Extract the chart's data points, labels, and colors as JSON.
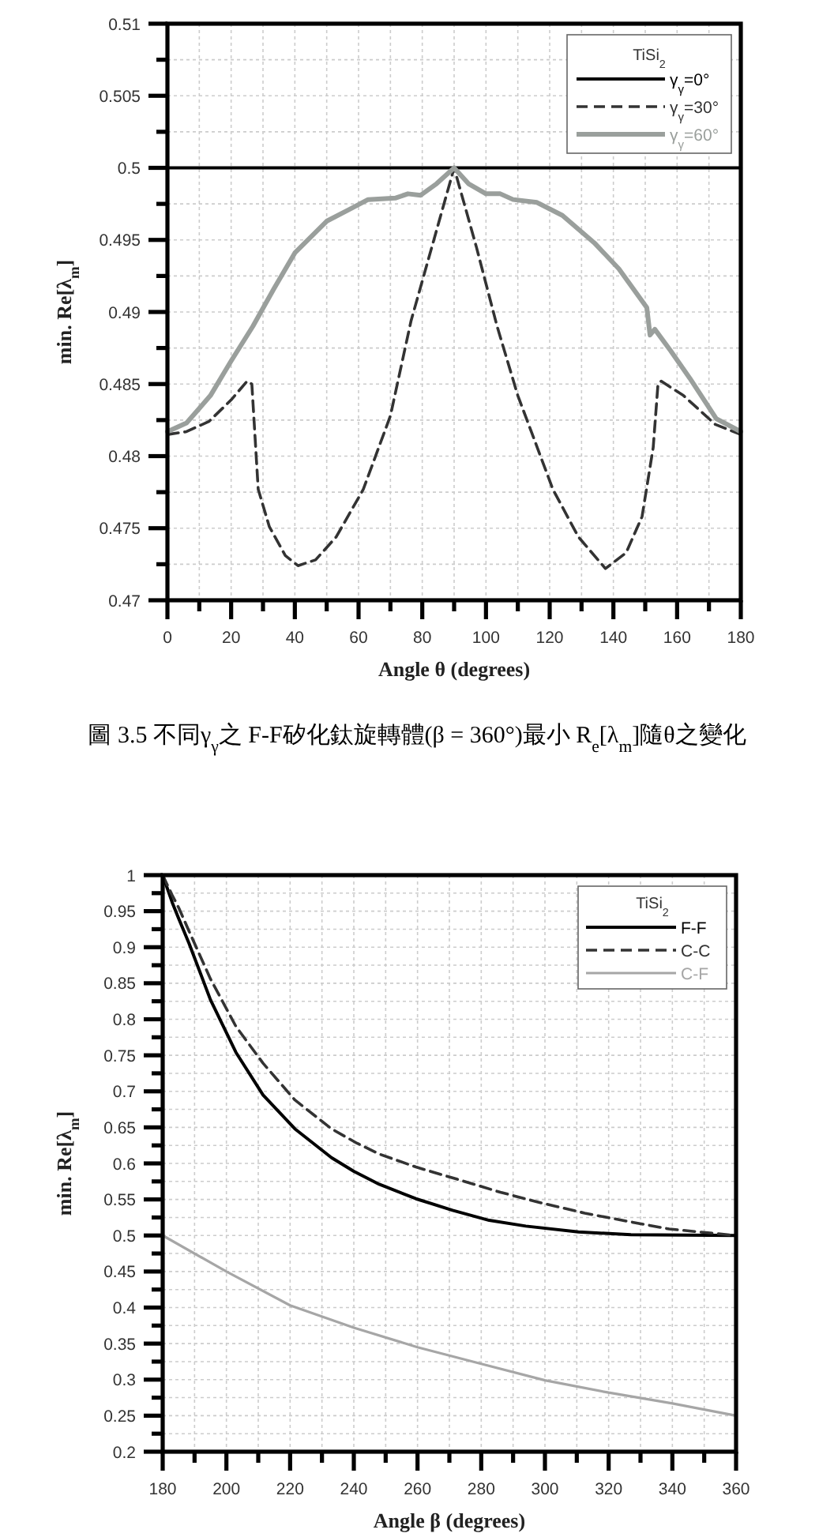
{
  "chart_data": [
    {
      "type": "line",
      "xlabel": "Angle θ (degrees)",
      "ylabel": "min. Re[λ$_{m}$]",
      "legend_title": "TiSi$_{2}$",
      "annotations": [
        "圖 3.5 不同γ$_{γ}$之 F-F矽化鈦旋轉體(β = 360°)最小 R$_{e}$[λ$_{m}$]隨θ之變化"
      ],
      "xlim": [
        0,
        180
      ],
      "ylim": [
        0.47,
        0.51
      ],
      "xticks": [
        0,
        {
          "value": 10,
          "label": null
        },
        20,
        {
          "value": 30,
          "label": null
        },
        40,
        {
          "value": 50,
          "label": null
        },
        60,
        {
          "value": 70,
          "label": null
        },
        80,
        {
          "value": 90,
          "label": null
        },
        100,
        {
          "value": 110,
          "label": null
        },
        120,
        {
          "value": 130,
          "label": null
        },
        140,
        {
          "value": 150,
          "label": null
        },
        160,
        {
          "value": 170,
          "label": null
        },
        180
      ],
      "yticks": [
        0.47,
        {
          "value": 0.4725,
          "label": null
        },
        0.475,
        {
          "value": 0.4775,
          "label": null
        },
        0.48,
        {
          "value": 0.4825,
          "label": null
        },
        0.485,
        {
          "value": 0.4875,
          "label": null
        },
        0.49,
        {
          "value": 0.4925,
          "label": null
        },
        0.495,
        {
          "value": 0.4975,
          "label": null
        },
        0.5,
        {
          "value": 0.5025,
          "label": null
        },
        0.505,
        {
          "value": 0.5075,
          "label": null
        },
        0.51
      ],
      "grid": true,
      "legend": "top right",
      "series": [
        {
          "name": "γ$_{γ}$=0°",
          "color": "#000000",
          "line_style": "solid",
          "x": [
            0,
            180
          ],
          "values": [
            0.5,
            0.5
          ]
        },
        {
          "name": "γ$_{γ}$=30°",
          "color": "#333333",
          "line_style": "dashed",
          "x": [
            0,
            6,
            13,
            20,
            25,
            26.5,
            28.5,
            32,
            37,
            41,
            46.5,
            53,
            61.5,
            70,
            76.5,
            83,
            90,
            97,
            103.5,
            110,
            121,
            129,
            137.5,
            144,
            149,
            152.5,
            154,
            155,
            162,
            172,
            180
          ],
          "values": [
            0.4815,
            0.4817,
            0.4824,
            0.4839,
            0.4852,
            0.485,
            0.4777,
            0.4751,
            0.4731,
            0.4724,
            0.4728,
            0.4744,
            0.4777,
            0.4828,
            0.4894,
            0.4945,
            0.5,
            0.4945,
            0.489,
            0.4842,
            0.4777,
            0.4744,
            0.4722,
            0.4733,
            0.4758,
            0.4806,
            0.485,
            0.4852,
            0.4842,
            0.4822,
            0.4815
          ]
        },
        {
          "name": "γ$_{γ}$=60°",
          "color": "#9a9f9c",
          "line_style": "solid",
          "x": [
            0,
            6,
            13.5,
            20,
            26.8,
            33.4,
            40,
            50,
            57,
            63,
            71.5,
            75.5,
            79.5,
            84.5,
            90,
            94.5,
            100,
            104.5,
            108.5,
            116,
            124,
            134,
            141.7,
            150.5,
            151.5,
            153,
            158,
            164,
            172.3,
            180
          ],
          "values": [
            0.4817,
            0.4823,
            0.4842,
            0.4866,
            0.489,
            0.4916,
            0.4941,
            0.4963,
            0.4971,
            0.4978,
            0.4979,
            0.4982,
            0.4981,
            0.4989,
            0.5,
            0.4989,
            0.4982,
            0.4982,
            0.4978,
            0.4976,
            0.4967,
            0.4948,
            0.493,
            0.4903,
            0.4884,
            0.4888,
            0.4873,
            0.4854,
            0.4826,
            0.4817
          ]
        }
      ]
    },
    {
      "type": "line",
      "xlabel": "Angle β (degrees)",
      "ylabel": "min. Re[λ$_{m}$]",
      "legend_title": "TiSi$_{2}$",
      "xlim": [
        180,
        360
      ],
      "ylim": [
        0.2,
        1
      ],
      "xticks": [
        180,
        {
          "value": 190,
          "label": null
        },
        200,
        {
          "value": 210,
          "label": null
        },
        220,
        {
          "value": 230,
          "label": null
        },
        240,
        {
          "value": 250,
          "label": null
        },
        260,
        {
          "value": 270,
          "label": null
        },
        280,
        {
          "value": 290,
          "label": null
        },
        300,
        {
          "value": 310,
          "label": null
        },
        320,
        {
          "value": 330,
          "label": null
        },
        340,
        {
          "value": 350,
          "label": null
        },
        360
      ],
      "yticks": [
        0.2,
        {
          "value": 0.225,
          "label": null
        },
        0.25,
        {
          "value": 0.275,
          "label": null
        },
        0.3,
        {
          "value": 0.325,
          "label": null
        },
        0.35,
        {
          "value": 0.375,
          "label": null
        },
        0.4,
        {
          "value": 0.425,
          "label": null
        },
        0.45,
        {
          "value": 0.475,
          "label": null
        },
        0.5,
        {
          "value": 0.525,
          "label": null
        },
        0.55,
        {
          "value": 0.575,
          "label": null
        },
        0.6,
        {
          "value": 0.625,
          "label": null
        },
        0.65,
        {
          "value": 0.675,
          "label": null
        },
        0.7,
        {
          "value": 0.725,
          "label": null
        },
        0.75,
        {
          "value": 0.775,
          "label": null
        },
        0.8,
        {
          "value": 0.825,
          "label": null
        },
        0.85,
        {
          "value": 0.875,
          "label": null
        },
        0.9,
        {
          "value": 0.925,
          "label": null
        },
        0.95,
        {
          "value": 0.975,
          "label": null
        },
        1
      ],
      "grid": true,
      "legend": "top right",
      "series": [
        {
          "name": "F-F",
          "color": "#000000",
          "line_style": "solid",
          "x": [
            180,
            183,
            185,
            188.3,
            195,
            203,
            211.5,
            221.5,
            233,
            240,
            248,
            259.5,
            271,
            282.5,
            294,
            310.5,
            327,
            360
          ],
          "values": [
            1,
            0.962,
            0.94,
            0.905,
            0.827,
            0.754,
            0.695,
            0.648,
            0.608,
            0.589,
            0.571,
            0.551,
            0.535,
            0.521,
            0.513,
            0.505,
            0.501,
            0.5
          ]
        },
        {
          "name": "C-C",
          "color": "#333333",
          "line_style": "dashed",
          "x": [
            180,
            183,
            185,
            188.3,
            195,
            203,
            211.5,
            221.5,
            233,
            241,
            248,
            259.5,
            272.5,
            286,
            299,
            312.5,
            325.5,
            339,
            360
          ],
          "values": [
            1,
            0.972,
            0.955,
            0.922,
            0.856,
            0.79,
            0.739,
            0.688,
            0.648,
            0.628,
            0.613,
            0.595,
            0.578,
            0.56,
            0.545,
            0.531,
            0.52,
            0.509,
            0.5
          ]
        },
        {
          "name": "C-F",
          "color": "#a6a6a6",
          "line_style": "solid",
          "x": [
            180,
            200,
            220,
            240,
            260,
            280,
            300,
            320,
            340,
            360
          ],
          "values": [
            0.5,
            0.45,
            0.403,
            0.372,
            0.345,
            0.322,
            0.299,
            0.282,
            0.267,
            0.25
          ]
        }
      ]
    }
  ]
}
